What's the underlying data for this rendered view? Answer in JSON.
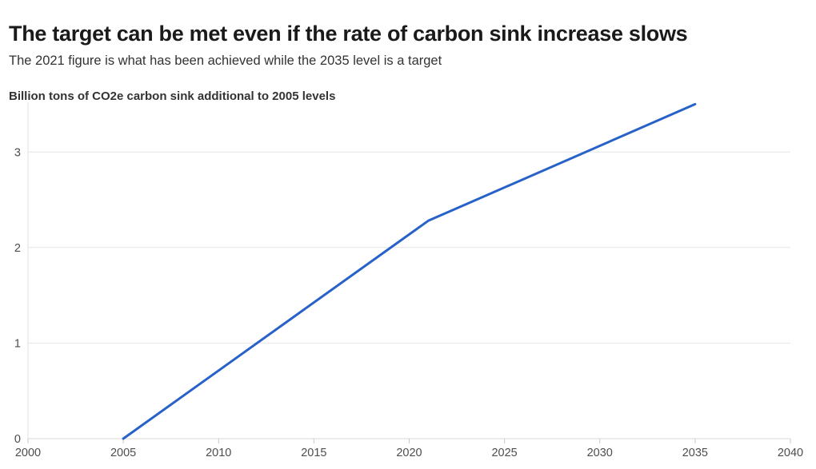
{
  "chart_data": {
    "type": "line",
    "title": "The target can be met even if the rate of carbon sink increase slows",
    "subtitle": "The 2021 figure is what has been achieved while the 2035 level is a target",
    "axis_note": "Billion tons of CO2e carbon sink additional to 2005 levels",
    "xlabel": "",
    "ylabel": "Billion tons of CO2e carbon sink additional to 2005 levels",
    "series": [
      {
        "name": "Carbon sink additional to 2005 levels",
        "x": [
          2005,
          2021,
          2035
        ],
        "y": [
          0,
          2.28,
          3.5
        ]
      }
    ],
    "annotations": {
      "achieved_point": {
        "year": 2021,
        "value": 2.28,
        "meaning": "achieved"
      },
      "target_point": {
        "year": 2035,
        "value": 3.5,
        "meaning": "target"
      }
    },
    "xlim": [
      2000,
      2040
    ],
    "ylim": [
      0,
      3.52
    ],
    "xticks": [
      2000,
      2005,
      2010,
      2015,
      2020,
      2025,
      2030,
      2035,
      2040
    ],
    "yticks": [
      0,
      1,
      2,
      3
    ],
    "grid": "horizontal",
    "legend": "none",
    "colors": {
      "line": "#2862c9",
      "grid": "#e6e6e6",
      "baseline": "#d9d9d9",
      "axis_line": "#e0e0e0",
      "tick_mark": "#c9c9c9",
      "tick_label": "#4d4d4d",
      "title": "#1a1a1a",
      "subtitle": "#333333"
    }
  }
}
